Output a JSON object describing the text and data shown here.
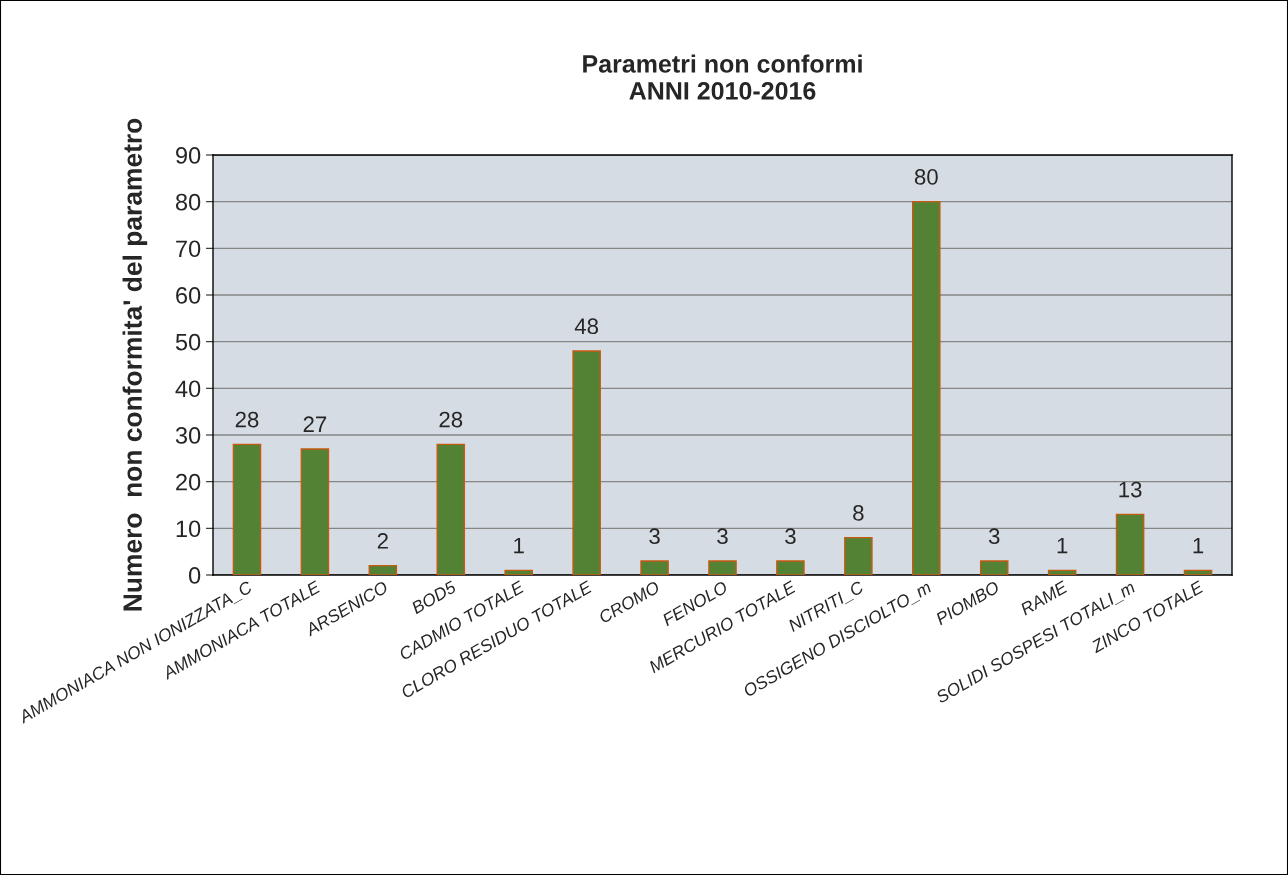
{
  "chart_data": {
    "type": "bar",
    "title": "Parametri non conformi\nANNI 2010-2016",
    "ylabel": "Numero  non conformita' del parametro",
    "categories": [
      "AMMONIACA NON IONIZZATA_C",
      "AMMONIACA TOTALE",
      "ARSENICO",
      "BOD5",
      "CADMIO TOTALE",
      "CLORO RESIDUO TOTALE",
      "CROMO",
      "FENOLO",
      "MERCURIO TOTALE",
      "NITRITI_C",
      "OSSIGENO DISCIOLTO_m",
      "PIOMBO",
      "RAME",
      "SOLIDI SOSPESI TOTALI_m",
      "ZINCO TOTALE"
    ],
    "values": [
      28,
      27,
      2,
      28,
      1,
      48,
      3,
      3,
      3,
      8,
      80,
      3,
      1,
      13,
      1
    ],
    "color": "#548235",
    "ylim": [
      0,
      90
    ],
    "yticks": [
      0,
      10,
      20,
      30,
      40,
      50,
      60,
      70,
      80,
      90
    ],
    "grid": "y",
    "data_labels": true,
    "legend": false
  }
}
